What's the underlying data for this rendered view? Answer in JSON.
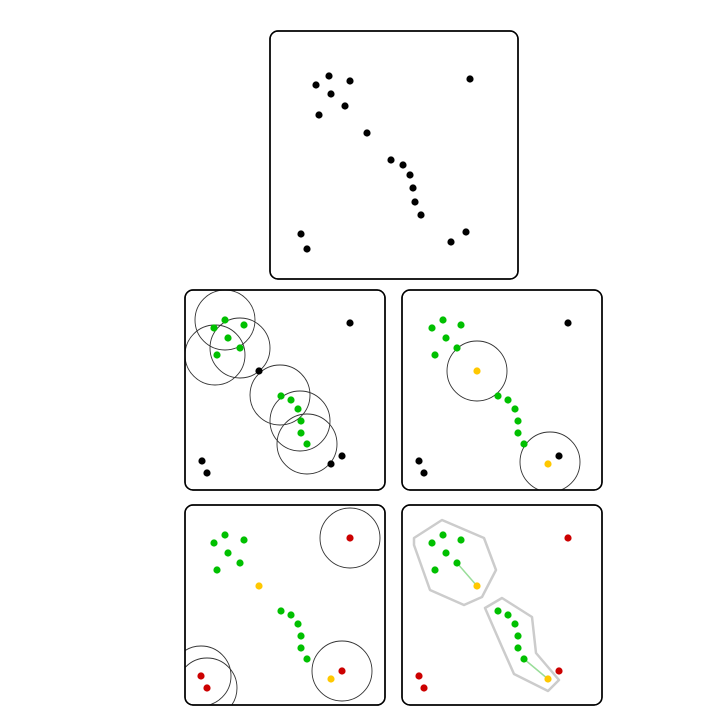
{
  "colors": {
    "unvisited": "#000000",
    "core": "#00c000",
    "border": "#ffc800",
    "noise": "#cc0000",
    "hull": "#cccccc",
    "radius": "#333333",
    "link": "#99dd99"
  },
  "panels": [
    {
      "id": "raw-points",
      "points": [
        [
          46,
          54,
          "unvisited"
        ],
        [
          59,
          45,
          "unvisited"
        ],
        [
          80,
          50,
          "unvisited"
        ],
        [
          61,
          63,
          "unvisited"
        ],
        [
          75,
          75,
          "unvisited"
        ],
        [
          49,
          84,
          "unvisited"
        ],
        [
          200,
          48,
          "unvisited"
        ],
        [
          97,
          102,
          "unvisited"
        ],
        [
          121,
          129,
          "unvisited"
        ],
        [
          133,
          134,
          "unvisited"
        ],
        [
          140,
          144,
          "unvisited"
        ],
        [
          143,
          157,
          "unvisited"
        ],
        [
          145,
          171,
          "unvisited"
        ],
        [
          151,
          184,
          "unvisited"
        ],
        [
          196,
          201,
          "unvisited"
        ],
        [
          181,
          211,
          "unvisited"
        ],
        [
          31,
          203,
          "unvisited"
        ],
        [
          37,
          218,
          "unvisited"
        ]
      ],
      "circles": [],
      "hulls": [],
      "links": []
    },
    {
      "id": "neighborhood-circles",
      "points": [
        [
          29,
          38,
          "core"
        ],
        [
          40,
          30,
          "core"
        ],
        [
          59,
          35,
          "core"
        ],
        [
          43,
          48,
          "core"
        ],
        [
          55,
          58,
          "core"
        ],
        [
          32,
          65,
          "core"
        ],
        [
          165,
          33,
          "unvisited"
        ],
        [
          74,
          81,
          "unvisited"
        ],
        [
          96,
          106,
          "core"
        ],
        [
          106,
          110,
          "core"
        ],
        [
          113,
          119,
          "core"
        ],
        [
          116,
          131,
          "core"
        ],
        [
          116,
          143,
          "core"
        ],
        [
          122,
          154,
          "core"
        ],
        [
          157,
          166,
          "unvisited"
        ],
        [
          146,
          174,
          "unvisited"
        ],
        [
          17,
          171,
          "unvisited"
        ],
        [
          22,
          183,
          "unvisited"
        ]
      ],
      "circles": [
        [
          40,
          30,
          30
        ],
        [
          55,
          58,
          30
        ],
        [
          30,
          65,
          30
        ],
        [
          95,
          105,
          30
        ],
        [
          115,
          131,
          30
        ],
        [
          122,
          154,
          30
        ]
      ],
      "hulls": [],
      "links": []
    },
    {
      "id": "border-points",
      "points": [
        [
          30,
          38,
          "core"
        ],
        [
          41,
          30,
          "core"
        ],
        [
          59,
          35,
          "core"
        ],
        [
          44,
          48,
          "core"
        ],
        [
          55,
          58,
          "core"
        ],
        [
          33,
          65,
          "core"
        ],
        [
          166,
          33,
          "unvisited"
        ],
        [
          75,
          81,
          "border"
        ],
        [
          96,
          106,
          "core"
        ],
        [
          106,
          110,
          "core"
        ],
        [
          113,
          119,
          "core"
        ],
        [
          116,
          131,
          "core"
        ],
        [
          116,
          143,
          "core"
        ],
        [
          122,
          154,
          "core"
        ],
        [
          157,
          166,
          "unvisited"
        ],
        [
          146,
          174,
          "border"
        ],
        [
          17,
          171,
          "unvisited"
        ],
        [
          22,
          183,
          "unvisited"
        ]
      ],
      "circles": [
        [
          75,
          81,
          30
        ],
        [
          148,
          172,
          30
        ]
      ],
      "hulls": [],
      "links": []
    },
    {
      "id": "noise-points",
      "points": [
        [
          29,
          38,
          "core"
        ],
        [
          40,
          30,
          "core"
        ],
        [
          59,
          35,
          "core"
        ],
        [
          43,
          48,
          "core"
        ],
        [
          55,
          58,
          "core"
        ],
        [
          32,
          65,
          "core"
        ],
        [
          165,
          33,
          "noise"
        ],
        [
          74,
          81,
          "border"
        ],
        [
          96,
          106,
          "core"
        ],
        [
          106,
          110,
          "core"
        ],
        [
          113,
          119,
          "core"
        ],
        [
          116,
          131,
          "core"
        ],
        [
          116,
          143,
          "core"
        ],
        [
          122,
          154,
          "core"
        ],
        [
          157,
          166,
          "noise"
        ],
        [
          146,
          174,
          "border"
        ],
        [
          16,
          171,
          "noise"
        ],
        [
          22,
          183,
          "noise"
        ]
      ],
      "circles": [
        [
          165,
          33,
          30
        ],
        [
          157,
          166,
          30
        ],
        [
          16,
          171,
          30
        ],
        [
          22,
          183,
          30
        ]
      ],
      "hulls": [],
      "links": []
    },
    {
      "id": "final-clusters",
      "points": [
        [
          30,
          38,
          "core"
        ],
        [
          41,
          30,
          "core"
        ],
        [
          59,
          35,
          "core"
        ],
        [
          44,
          48,
          "core"
        ],
        [
          55,
          58,
          "core"
        ],
        [
          33,
          65,
          "core"
        ],
        [
          166,
          33,
          "noise"
        ],
        [
          75,
          81,
          "border"
        ],
        [
          96,
          106,
          "core"
        ],
        [
          106,
          110,
          "core"
        ],
        [
          113,
          119,
          "core"
        ],
        [
          116,
          131,
          "core"
        ],
        [
          116,
          143,
          "core"
        ],
        [
          122,
          154,
          "core"
        ],
        [
          157,
          166,
          "noise"
        ],
        [
          146,
          174,
          "border"
        ],
        [
          17,
          171,
          "noise"
        ],
        [
          22,
          183,
          "noise"
        ]
      ],
      "circles": [],
      "hulls": [
        [
          [
            12,
            33
          ],
          [
            40,
            15
          ],
          [
            82,
            33
          ],
          [
            94,
            65
          ],
          [
            80,
            92
          ],
          [
            62,
            100
          ],
          [
            28,
            85
          ],
          [
            12,
            40
          ]
        ],
        [
          [
            83,
            103
          ],
          [
            100,
            93
          ],
          [
            130,
            112
          ],
          [
            134,
            148
          ],
          [
            157,
            175
          ],
          [
            146,
            186
          ],
          [
            112,
            169
          ],
          [
            100,
            142
          ]
        ]
      ],
      "links": [
        [
          [
            55,
            58
          ],
          [
            75,
            81
          ]
        ],
        [
          [
            122,
            154
          ],
          [
            146,
            174
          ]
        ]
      ]
    }
  ]
}
